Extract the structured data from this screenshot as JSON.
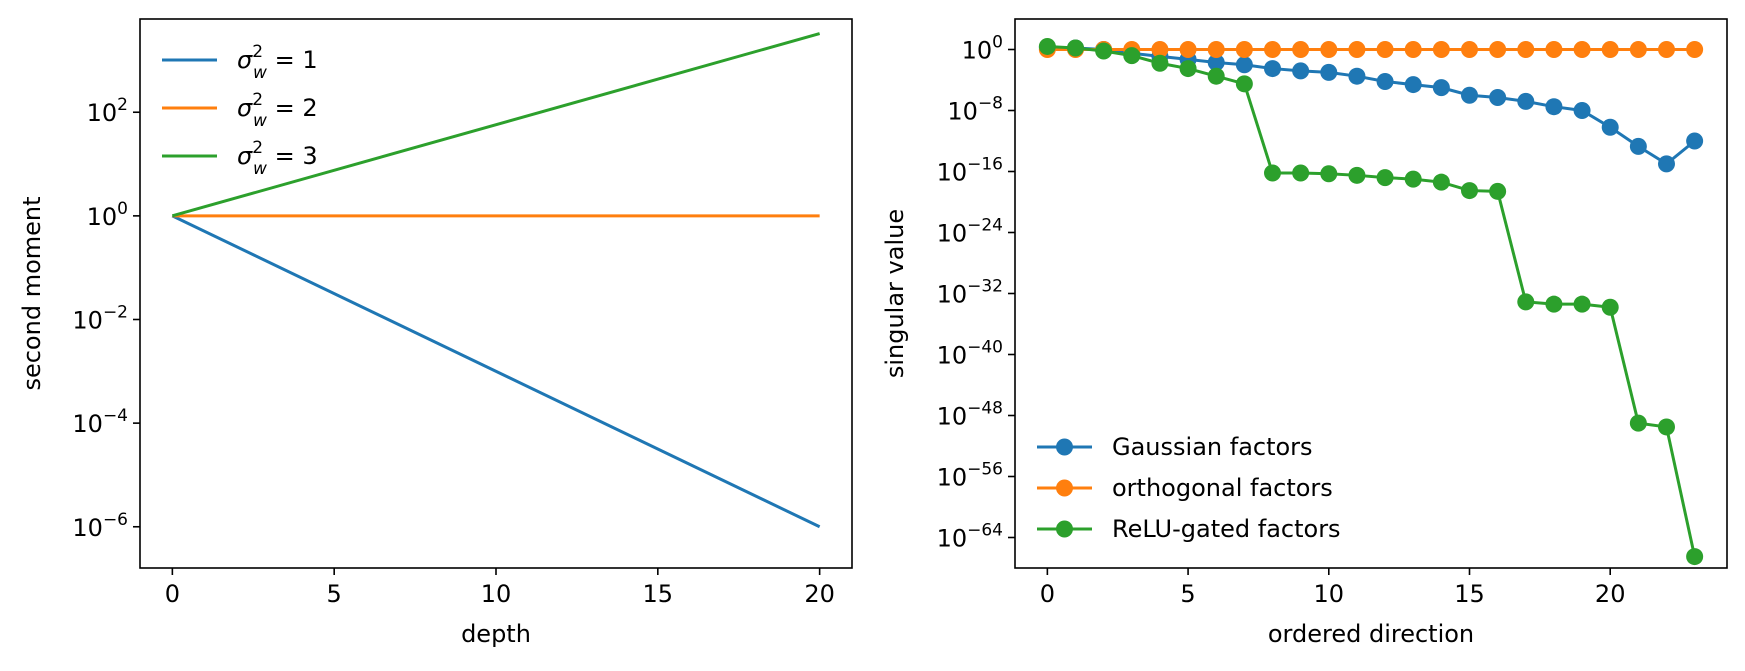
{
  "chart_data": [
    {
      "type": "line",
      "xlabel": "depth",
      "ylabel": "second moment",
      "yscale": "log",
      "xlim": [
        -1,
        21
      ],
      "ylim": [
        1.6e-07,
        6300
      ],
      "xticks": [
        0,
        5,
        10,
        15,
        20
      ],
      "yticks": [
        {
          "base": "10",
          "exp": "2",
          "value": 100
        },
        {
          "base": "10",
          "exp": "0",
          "value": 1
        },
        {
          "base": "10",
          "exp": "−2",
          "value": 0.01
        },
        {
          "base": "10",
          "exp": "−4",
          "value": 0.0001
        },
        {
          "base": "10",
          "exp": "−6",
          "value": 1e-06
        }
      ],
      "legend_position": "top-left",
      "series": [
        {
          "name": "σ²_w = 1",
          "label": {
            "var": "σ",
            "sup": "2",
            "sub": "w",
            "rest": " = 1"
          },
          "color": "#1f77b4",
          "x": [
            0,
            20
          ],
          "y": [
            1,
            1e-06
          ]
        },
        {
          "name": "σ²_w = 2",
          "label": {
            "var": "σ",
            "sup": "2",
            "sub": "w",
            "rest": " = 2"
          },
          "color": "#ff7f0e",
          "x": [
            0,
            20
          ],
          "y": [
            1,
            1
          ]
        },
        {
          "name": "σ²_w = 3",
          "label": {
            "var": "σ",
            "sup": "2",
            "sub": "w",
            "rest": " = 3"
          },
          "color": "#2ca02c",
          "x": [
            0,
            20
          ],
          "y": [
            1,
            3300
          ]
        }
      ]
    },
    {
      "type": "line",
      "markers": true,
      "xlabel": "ordered direction",
      "ylabel": "singular value",
      "yscale": "log",
      "xlim": [
        -1.15,
        24.15
      ],
      "ylim": [
        1e-68,
        10000.0
      ],
      "xticks": [
        0,
        5,
        10,
        15,
        20
      ],
      "yticks": [
        {
          "base": "10",
          "exp": "0",
          "value": 1
        },
        {
          "base": "10",
          "exp": "−8",
          "value": 1e-08
        },
        {
          "base": "10",
          "exp": "−16",
          "value": 1e-16
        },
        {
          "base": "10",
          "exp": "−24",
          "value": 1e-24
        },
        {
          "base": "10",
          "exp": "−32",
          "value": 1e-32
        },
        {
          "base": "10",
          "exp": "−40",
          "value": 1e-40
        },
        {
          "base": "10",
          "exp": "−48",
          "value": 1e-48
        },
        {
          "base": "10",
          "exp": "−56",
          "value": 1e-56
        },
        {
          "base": "10",
          "exp": "−64",
          "value": 1e-64
        }
      ],
      "legend_position": "lower-left",
      "x": [
        0,
        1,
        2,
        3,
        4,
        5,
        6,
        7,
        8,
        9,
        10,
        11,
        12,
        13,
        14,
        15,
        16,
        17,
        18,
        19,
        20,
        21,
        22,
        23
      ],
      "series": [
        {
          "name": "Gaussian factors",
          "color": "#1f77b4",
          "log10_y": [
            0.3,
            0.2,
            0.0,
            -0.5,
            -0.9,
            -1.3,
            -1.7,
            -2.0,
            -2.5,
            -2.8,
            -3.0,
            -3.5,
            -4.2,
            -4.6,
            -5.0,
            -6.0,
            -6.3,
            -6.8,
            -7.5,
            -8.0,
            -10.2,
            -12.7,
            -15.0,
            -12.0
          ],
          "log10_y_note": ""
        },
        {
          "name": "orthogonal factors",
          "color": "#ff7f0e",
          "log10_y": [
            0,
            0,
            0,
            0,
            0,
            0,
            0,
            0,
            0,
            0,
            0,
            0,
            0,
            0,
            0,
            0,
            0,
            0,
            0,
            0,
            0,
            0,
            0,
            0
          ]
        },
        {
          "name": "ReLU-gated factors",
          "color": "#2ca02c",
          "log10_y": [
            0.4,
            0.2,
            -0.2,
            -0.8,
            -1.8,
            -2.5,
            -3.5,
            -4.5,
            -16.2,
            -16.2,
            -16.3,
            -16.5,
            -16.8,
            -17.0,
            -17.4,
            -18.5,
            -18.6,
            -33.1,
            -33.4,
            -33.4,
            -33.8,
            -49.0,
            -49.5,
            -66.5
          ]
        }
      ]
    }
  ]
}
